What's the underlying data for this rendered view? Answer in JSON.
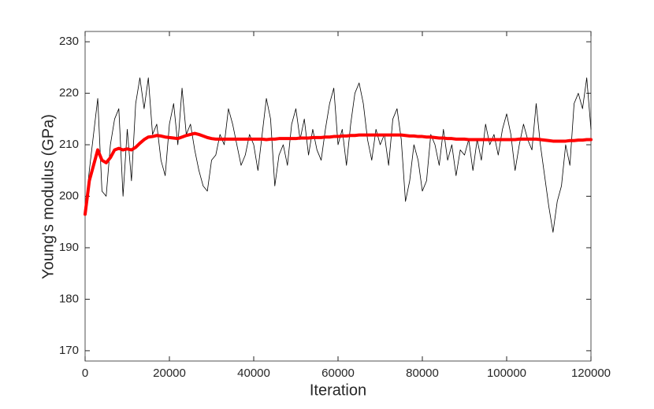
{
  "chart_data": {
    "type": "line",
    "xlabel": "Iteration",
    "ylabel": "Young's modulus (GPa)",
    "xlim": [
      0,
      120000
    ],
    "ylim": [
      168,
      232
    ],
    "xticks": [
      0,
      20000,
      40000,
      60000,
      80000,
      100000,
      120000
    ],
    "yticks": [
      170,
      180,
      190,
      200,
      210,
      220,
      230
    ],
    "grid": false,
    "x": [
      0,
      1000,
      2000,
      3000,
      4000,
      5000,
      6000,
      7000,
      8000,
      9000,
      10000,
      11000,
      12000,
      13000,
      14000,
      15000,
      16000,
      17000,
      18000,
      19000,
      20000,
      21000,
      22000,
      23000,
      24000,
      25000,
      26000,
      27000,
      28000,
      29000,
      30000,
      31000,
      32000,
      33000,
      34000,
      35000,
      36000,
      37000,
      38000,
      39000,
      40000,
      41000,
      42000,
      43000,
      44000,
      45000,
      46000,
      47000,
      48000,
      49000,
      50000,
      51000,
      52000,
      53000,
      54000,
      55000,
      56000,
      57000,
      58000,
      59000,
      60000,
      61000,
      62000,
      63000,
      64000,
      65000,
      66000,
      67000,
      68000,
      69000,
      70000,
      71000,
      72000,
      73000,
      74000,
      75000,
      76000,
      77000,
      78000,
      79000,
      80000,
      81000,
      82000,
      83000,
      84000,
      85000,
      86000,
      87000,
      88000,
      89000,
      90000,
      91000,
      92000,
      93000,
      94000,
      95000,
      96000,
      97000,
      98000,
      99000,
      100000,
      101000,
      102000,
      103000,
      104000,
      105000,
      106000,
      107000,
      108000,
      109000,
      110000,
      111000,
      112000,
      113000,
      114000,
      115000,
      116000,
      117000,
      118000,
      119000,
      120000
    ],
    "series": [
      {
        "color": "#000000",
        "width": 0.8,
        "values": [
          197,
          205,
          212,
          219,
          201,
          200,
          210,
          215,
          217,
          200,
          213,
          203,
          218,
          223,
          217,
          223,
          212,
          214,
          207,
          204,
          214,
          218,
          210,
          221,
          212,
          214,
          209,
          205,
          202,
          201,
          207,
          208,
          212,
          210,
          217,
          214,
          210,
          206,
          208,
          212,
          210,
          205,
          212,
          219,
          215,
          202,
          208,
          210,
          206,
          214,
          217,
          211,
          215,
          208,
          213,
          209,
          207,
          213,
          218,
          221,
          210,
          213,
          206,
          214,
          220,
          222,
          218,
          211,
          207,
          213,
          210,
          212,
          206,
          215,
          217,
          211,
          199,
          203,
          210,
          207,
          201,
          203,
          212,
          210,
          206,
          213,
          207,
          210,
          204,
          209,
          208,
          211,
          205,
          211,
          207,
          214,
          210,
          212,
          208,
          213,
          216,
          212,
          205,
          210,
          214,
          211,
          209,
          218,
          210,
          204,
          198,
          193,
          199,
          202,
          210,
          206,
          218,
          220,
          217,
          223,
          213
        ]
      },
      {
        "color": "#ff0000",
        "width": 4,
        "values": [
          196.5,
          203,
          206,
          209,
          207,
          206.5,
          207.5,
          209,
          209.3,
          209,
          209.2,
          209,
          209.5,
          210.3,
          211,
          211.5,
          211.6,
          211.8,
          211.7,
          211.5,
          211.4,
          211.3,
          211.2,
          211.5,
          211.8,
          212,
          212.2,
          212,
          211.7,
          211.4,
          211.2,
          211.1,
          211.1,
          211.1,
          211.1,
          211.1,
          211.1,
          211.1,
          211.1,
          211.1,
          211.1,
          211.1,
          211.1,
          211.0,
          211.1,
          211.1,
          211.2,
          211.2,
          211.2,
          211.2,
          211.2,
          211.3,
          211.3,
          211.3,
          211.4,
          211.4,
          211.4,
          211.5,
          211.5,
          211.6,
          211.6,
          211.7,
          211.7,
          211.8,
          211.8,
          211.9,
          211.9,
          211.9,
          211.9,
          211.9,
          211.9,
          211.9,
          211.9,
          211.9,
          211.9,
          211.9,
          211.8,
          211.7,
          211.7,
          211.6,
          211.6,
          211.5,
          211.5,
          211.4,
          211.3,
          211.3,
          211.2,
          211.2,
          211.1,
          211.1,
          211.1,
          211.0,
          211.0,
          211.0,
          211.0,
          211.0,
          211.0,
          211.0,
          211.0,
          211.0,
          211.0,
          211.0,
          211.0,
          211.1,
          211.1,
          211.1,
          211.1,
          211.1,
          211.0,
          210.9,
          210.8,
          210.7,
          210.7,
          210.7,
          210.7,
          210.8,
          210.8,
          210.9,
          210.9,
          211.0,
          211.0
        ]
      }
    ]
  }
}
